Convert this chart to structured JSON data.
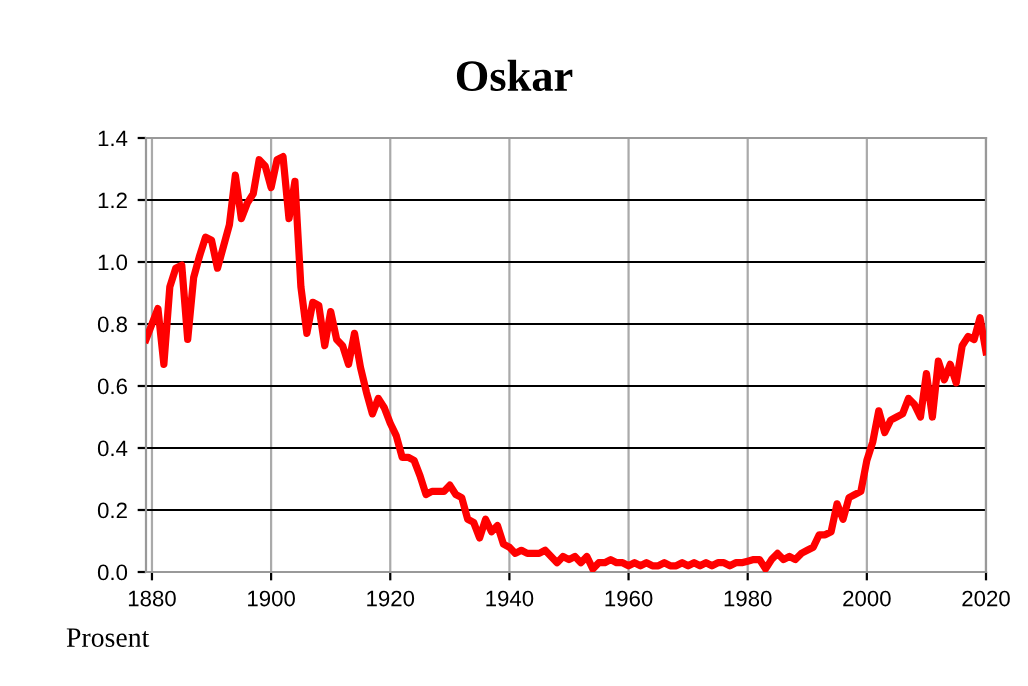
{
  "chart_data": {
    "type": "line",
    "title": "Oskar",
    "annotations": [
      "Prosent"
    ],
    "x": [
      1879,
      1880,
      1881,
      1882,
      1883,
      1884,
      1885,
      1886,
      1887,
      1888,
      1889,
      1890,
      1891,
      1892,
      1893,
      1894,
      1895,
      1896,
      1897,
      1898,
      1899,
      1900,
      1901,
      1902,
      1903,
      1904,
      1905,
      1906,
      1907,
      1908,
      1909,
      1910,
      1911,
      1912,
      1913,
      1914,
      1915,
      1916,
      1917,
      1918,
      1919,
      1920,
      1921,
      1922,
      1923,
      1924,
      1925,
      1926,
      1927,
      1928,
      1929,
      1930,
      1931,
      1932,
      1933,
      1934,
      1935,
      1936,
      1937,
      1938,
      1939,
      1940,
      1941,
      1942,
      1943,
      1944,
      1945,
      1946,
      1947,
      1948,
      1949,
      1950,
      1951,
      1952,
      1953,
      1954,
      1955,
      1956,
      1957,
      1958,
      1959,
      1960,
      1961,
      1962,
      1963,
      1964,
      1965,
      1966,
      1967,
      1968,
      1969,
      1970,
      1971,
      1972,
      1973,
      1974,
      1975,
      1976,
      1977,
      1978,
      1979,
      1980,
      1981,
      1982,
      1983,
      1984,
      1985,
      1986,
      1987,
      1988,
      1989,
      1990,
      1991,
      1992,
      1993,
      1994,
      1995,
      1996,
      1997,
      1998,
      1999,
      2000,
      2001,
      2002,
      2003,
      2004,
      2005,
      2006,
      2007,
      2008,
      2009,
      2010,
      2011,
      2012,
      2013,
      2014,
      2015,
      2016,
      2017,
      2018,
      2019,
      2020
    ],
    "series": [
      {
        "color": "#ff0000",
        "values": [
          0.75,
          0.8,
          0.85,
          0.67,
          0.92,
          0.98,
          0.99,
          0.75,
          0.95,
          1.02,
          1.08,
          1.07,
          0.98,
          1.05,
          1.12,
          1.28,
          1.14,
          1.19,
          1.22,
          1.33,
          1.31,
          1.24,
          1.33,
          1.34,
          1.14,
          1.26,
          0.92,
          0.77,
          0.87,
          0.86,
          0.73,
          0.84,
          0.75,
          0.73,
          0.67,
          0.77,
          0.66,
          0.58,
          0.51,
          0.56,
          0.53,
          0.48,
          0.44,
          0.37,
          0.37,
          0.36,
          0.31,
          0.25,
          0.26,
          0.26,
          0.26,
          0.28,
          0.25,
          0.24,
          0.17,
          0.16,
          0.11,
          0.17,
          0.13,
          0.15,
          0.09,
          0.08,
          0.06,
          0.07,
          0.06,
          0.06,
          0.06,
          0.07,
          0.05,
          0.03,
          0.05,
          0.04,
          0.05,
          0.03,
          0.05,
          0.01,
          0.03,
          0.03,
          0.04,
          0.03,
          0.03,
          0.02,
          0.03,
          0.02,
          0.03,
          0.02,
          0.02,
          0.03,
          0.02,
          0.02,
          0.03,
          0.02,
          0.03,
          0.02,
          0.03,
          0.02,
          0.03,
          0.03,
          0.02,
          0.03,
          0.03,
          0.035,
          0.04,
          0.04,
          0.01,
          0.04,
          0.06,
          0.04,
          0.05,
          0.04,
          0.06,
          0.07,
          0.08,
          0.12,
          0.12,
          0.13,
          0.22,
          0.17,
          0.24,
          0.25,
          0.26,
          0.36,
          0.42,
          0.52,
          0.45,
          0.49,
          0.5,
          0.51,
          0.56,
          0.54,
          0.5,
          0.64,
          0.5,
          0.68,
          0.62,
          0.67,
          0.61,
          0.73,
          0.76,
          0.75,
          0.82,
          0.71
        ]
      }
    ],
    "xlim": [
      1879,
      2020
    ],
    "xticks": [
      1880,
      1900,
      1920,
      1940,
      1960,
      1980,
      2000,
      2020
    ],
    "ylim": [
      0,
      1.4
    ],
    "yticks": [
      {
        "value": 0,
        "label": "0.0"
      },
      {
        "value": 0.2,
        "label": "0.2"
      },
      {
        "value": 0.4,
        "label": "0.4"
      },
      {
        "value": 0.6,
        "label": "0.6"
      },
      {
        "value": 0.8,
        "label": "0.8"
      },
      {
        "value": 1.0,
        "label": "1.0"
      },
      {
        "value": 1.2,
        "label": "1.2"
      },
      {
        "value": 1.4,
        "label": "1.4"
      }
    ],
    "grid": true,
    "legend": false,
    "marker": "none",
    "line_style": "solid"
  }
}
